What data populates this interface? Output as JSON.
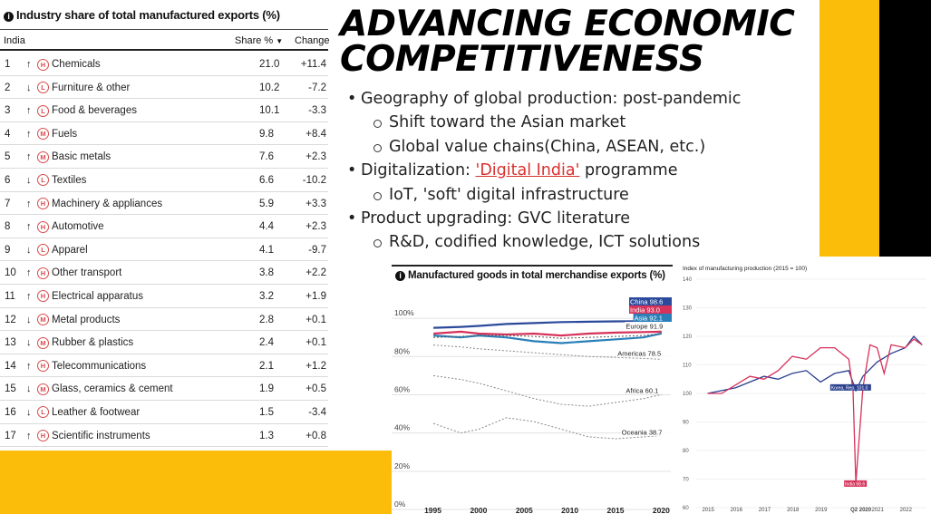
{
  "table": {
    "title": "Industry share of total manufactured exports (%)",
    "info_icon": "i",
    "col_country": "India",
    "col_share": "Share %",
    "sort_indicator": "▼",
    "col_change": "Change",
    "rows": [
      {
        "rank": "1",
        "dir": "↑",
        "tech": "H",
        "name": "Chemicals",
        "share": "21.0",
        "change": "+11.4"
      },
      {
        "rank": "2",
        "dir": "↓",
        "tech": "L",
        "name": "Furniture & other",
        "share": "10.2",
        "change": "-7.2"
      },
      {
        "rank": "3",
        "dir": "↑",
        "tech": "L",
        "name": "Food & beverages",
        "share": "10.1",
        "change": "-3.3"
      },
      {
        "rank": "4",
        "dir": "↑",
        "tech": "M",
        "name": "Fuels",
        "share": "9.8",
        "change": "+8.4"
      },
      {
        "rank": "5",
        "dir": "↑",
        "tech": "M",
        "name": "Basic metals",
        "share": "7.6",
        "change": "+2.3"
      },
      {
        "rank": "6",
        "dir": "↓",
        "tech": "L",
        "name": "Textiles",
        "share": "6.6",
        "change": "-10.2"
      },
      {
        "rank": "7",
        "dir": "↑",
        "tech": "H",
        "name": "Machinery & appliances",
        "share": "5.9",
        "change": "+3.3"
      },
      {
        "rank": "8",
        "dir": "↑",
        "tech": "H",
        "name": "Automotive",
        "share": "4.4",
        "change": "+2.3"
      },
      {
        "rank": "9",
        "dir": "↓",
        "tech": "L",
        "name": "Apparel",
        "share": "4.1",
        "change": "-9.7"
      },
      {
        "rank": "10",
        "dir": "↑",
        "tech": "H",
        "name": "Other transport",
        "share": "3.8",
        "change": "+2.2"
      },
      {
        "rank": "11",
        "dir": "↑",
        "tech": "H",
        "name": "Electrical apparatus",
        "share": "3.2",
        "change": "+1.9"
      },
      {
        "rank": "12",
        "dir": "↓",
        "tech": "M",
        "name": "Metal products",
        "share": "2.8",
        "change": "+0.1"
      },
      {
        "rank": "13",
        "dir": "↓",
        "tech": "M",
        "name": "Rubber & plastics",
        "share": "2.4",
        "change": "+0.1"
      },
      {
        "rank": "14",
        "dir": "↑",
        "tech": "H",
        "name": "Telecommunications",
        "share": "2.1",
        "change": "+1.2"
      },
      {
        "rank": "15",
        "dir": "↓",
        "tech": "M",
        "name": "Glass, ceramics & cement",
        "share": "1.9",
        "change": "+0.5"
      },
      {
        "rank": "16",
        "dir": "↓",
        "tech": "L",
        "name": "Leather & footwear",
        "share": "1.5",
        "change": "-3.4"
      },
      {
        "rank": "17",
        "dir": "↑",
        "tech": "H",
        "name": "Scientific instruments",
        "share": "1.3",
        "change": "+0.8"
      }
    ]
  },
  "slide": {
    "headline_line1": "ADVANCING ECONOMIC",
    "headline_line2": "COMPETITIVENESS",
    "bullets": {
      "b1": "Geography of global production: post-pandemic",
      "b1_sub1": "Shift toward the Asian market",
      "b1_sub2": "Global value chains(China, ASEAN, etc.)",
      "b2_prefix": "Digitalization: ",
      "b2_link": "'Digital India'",
      "b2_suffix": " programme",
      "b2_sub1": "IoT, 'soft' digital infrastructure",
      "b3": "Product upgrading: GVC literature",
      "b3_sub1": "R&D, codified knowledge, ICT solutions"
    }
  },
  "colors": {
    "yellow": "#fbbd0a",
    "china": "#2b4a9b",
    "india": "#d6325a",
    "asia": "#2a7fb8",
    "europe": "#666666",
    "link": "#d9312f"
  },
  "chart_data": [
    {
      "type": "line",
      "title": "Manufactured goods in total merchandise exports (%)",
      "info_icon": "i",
      "ylim": [
        0,
        110
      ],
      "yticks": [
        "100%",
        "80%",
        "60%",
        "40%",
        "20%",
        "0%"
      ],
      "xticks": [
        "1995",
        "2000",
        "2005",
        "2010",
        "2015",
        "2020"
      ],
      "series": [
        {
          "name": "China",
          "label": "China 98.6",
          "x": [
            1995,
            1998,
            2000,
            2003,
            2006,
            2009,
            2012,
            2015,
            2018,
            2020
          ],
          "values": [
            95,
            95.5,
            96,
            97,
            97.5,
            98,
            98.2,
            98.4,
            98.5,
            98.6
          ]
        },
        {
          "name": "India",
          "label": "India 93.0",
          "x": [
            1995,
            1998,
            2000,
            2003,
            2006,
            2009,
            2012,
            2015,
            2018,
            2020
          ],
          "values": [
            92,
            93,
            92,
            91.5,
            92,
            91,
            92,
            92.5,
            92.8,
            93
          ]
        },
        {
          "name": "Asia",
          "label": "Asia 92.1",
          "x": [
            1995,
            1998,
            2000,
            2003,
            2006,
            2009,
            2012,
            2015,
            2018,
            2020
          ],
          "values": [
            91,
            90,
            91,
            90,
            88,
            87,
            88,
            89,
            90,
            92.1
          ]
        },
        {
          "name": "Europe",
          "label": "Europe 91.9",
          "x": [
            1995,
            1998,
            2000,
            2003,
            2006,
            2009,
            2012,
            2015,
            2018,
            2020
          ],
          "values": [
            90,
            90.5,
            91,
            91,
            90.5,
            89.5,
            90,
            90.5,
            91,
            91.9
          ]
        },
        {
          "name": "Americas",
          "label": "Americas 78.5",
          "x": [
            1995,
            1998,
            2000,
            2003,
            2006,
            2009,
            2012,
            2015,
            2018,
            2020
          ],
          "values": [
            86,
            85,
            84,
            83,
            82,
            81,
            80,
            79.5,
            79,
            78.5
          ]
        },
        {
          "name": "Africa",
          "label": "Africa 60.1",
          "x": [
            1995,
            1998,
            2000,
            2003,
            2006,
            2009,
            2012,
            2015,
            2018,
            2020
          ],
          "values": [
            70,
            68,
            66,
            62,
            58,
            55,
            54,
            56,
            58,
            60.1
          ]
        },
        {
          "name": "Oceania",
          "label": "Oceania 38.7",
          "x": [
            1995,
            1998,
            2000,
            2003,
            2006,
            2009,
            2012,
            2015,
            2018,
            2020
          ],
          "values": [
            45,
            40,
            42,
            48,
            46,
            42,
            38,
            37,
            38,
            38.7
          ]
        }
      ]
    },
    {
      "type": "line",
      "title": "Index of manufacturing production (2015 = 100)",
      "ylim": [
        60,
        140
      ],
      "yticks": [
        "140",
        "130",
        "120",
        "110",
        "100",
        "90",
        "80",
        "70",
        "60"
      ],
      "xticks": [
        "2015",
        "2016",
        "2017",
        "2018",
        "2019",
        "Q2 2020",
        "2021",
        "2022"
      ],
      "series": [
        {
          "name": "Korea, Rep.",
          "label": "Korea, Rep. 101.0",
          "x": [
            2015.0,
            2015.5,
            2016.0,
            2016.5,
            2017.0,
            2017.5,
            2018.0,
            2018.5,
            2019.0,
            2019.5,
            2020.0,
            2020.25,
            2020.5,
            2021.0,
            2021.5,
            2022.0,
            2022.3,
            2022.6
          ],
          "values": [
            100,
            101,
            102,
            104,
            106,
            105,
            107,
            108,
            104,
            107,
            108,
            101,
            106,
            111,
            114,
            116,
            120,
            117
          ]
        },
        {
          "name": "India",
          "label": "India 68.6",
          "x": [
            2015.0,
            2015.5,
            2016.0,
            2016.5,
            2017.0,
            2017.5,
            2018.0,
            2018.5,
            2019.0,
            2019.5,
            2020.0,
            2020.15,
            2020.25,
            2020.5,
            2020.75,
            2021.0,
            2021.25,
            2021.5,
            2022.0,
            2022.3,
            2022.6
          ],
          "values": [
            100,
            100,
            103,
            106,
            105,
            108,
            113,
            112,
            116,
            116,
            112,
            101,
            68.6,
            102,
            117,
            116,
            107,
            117,
            116,
            119,
            117
          ]
        }
      ]
    }
  ]
}
